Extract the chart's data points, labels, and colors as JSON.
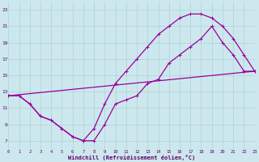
{
  "bg_color": "#cce8ee",
  "grid_color": "#aacccc",
  "line_color": "#990099",
  "xlabel": "Windchill (Refroidissement éolien,°C)",
  "xlim": [
    0,
    23
  ],
  "ylim": [
    6,
    24
  ],
  "yticks": [
    7,
    9,
    11,
    13,
    15,
    17,
    19,
    21,
    23
  ],
  "xticks": [
    0,
    1,
    2,
    3,
    4,
    5,
    6,
    7,
    8,
    9,
    10,
    11,
    12,
    13,
    14,
    15,
    16,
    17,
    18,
    19,
    20,
    21,
    22,
    23
  ],
  "curve1_x": [
    0,
    1,
    2,
    3,
    4,
    5,
    6,
    7,
    8,
    9,
    10,
    11,
    12,
    13,
    14,
    15,
    16,
    17,
    18,
    19,
    20,
    21,
    22,
    23
  ],
  "curve1_y": [
    12.5,
    12.5,
    11.5,
    10.0,
    9.5,
    8.5,
    7.5,
    7.0,
    7.0,
    9.0,
    11.5,
    12.0,
    12.5,
    14.0,
    14.5,
    16.5,
    17.5,
    18.5,
    19.5,
    21.0,
    19.0,
    17.5,
    15.5,
    15.5
  ],
  "curve2_x": [
    0,
    1,
    2,
    3,
    4,
    5,
    6,
    7,
    8,
    9,
    10,
    11,
    12,
    13,
    14,
    15,
    16,
    17,
    18,
    19,
    20,
    21,
    22,
    23
  ],
  "curve2_y": [
    12.5,
    12.5,
    11.5,
    10.0,
    9.5,
    8.5,
    7.5,
    7.0,
    8.5,
    11.5,
    14.0,
    15.5,
    17.0,
    18.5,
    20.0,
    21.0,
    22.0,
    22.5,
    22.5,
    22.0,
    21.0,
    19.5,
    17.5,
    15.5
  ],
  "line3_x": [
    0,
    23
  ],
  "line3_y": [
    12.5,
    15.5
  ],
  "lw": 0.9,
  "ms": 2.5
}
